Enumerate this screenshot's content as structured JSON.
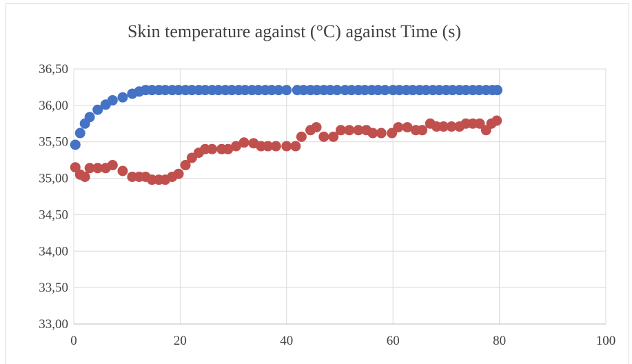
{
  "chart_data": {
    "type": "scatter",
    "title": "Skin temperature against (°C) against Time (s)",
    "xlabel": "",
    "ylabel": "",
    "xlim": [
      0,
      100
    ],
    "ylim": [
      33.0,
      36.5
    ],
    "x_ticks": [
      "0",
      "20",
      "40",
      "60",
      "80",
      "100"
    ],
    "y_ticks": [
      "33,00",
      "33,50",
      "34,00",
      "34,50",
      "35,00",
      "35,50",
      "36,00",
      "36,50"
    ],
    "grid": "horizontal",
    "legend": "none",
    "series": [
      {
        "color": "#4472c4",
        "x": [
          0.3,
          1.2,
          2.1,
          3.0,
          4.5,
          6.0,
          7.3,
          9.2,
          11.0,
          12.3,
          13.5,
          14.7,
          16.0,
          17.2,
          18.5,
          19.7,
          21.0,
          22.2,
          23.5,
          24.7,
          26.0,
          27.2,
          28.5,
          29.7,
          31.0,
          32.2,
          33.5,
          34.7,
          36.0,
          37.2,
          38.5,
          40.0,
          42.0,
          43.2,
          44.5,
          45.7,
          47.0,
          48.2,
          49.5,
          51.0,
          52.2,
          53.5,
          54.7,
          56.0,
          57.2,
          58.5,
          60.0,
          61.2,
          62.5,
          63.7,
          65.0,
          66.2,
          67.5,
          68.7,
          70.0,
          71.2,
          72.5,
          73.7,
          75.0,
          76.2,
          77.5,
          78.7,
          79.6
        ],
        "y": [
          35.46,
          35.62,
          35.75,
          35.84,
          35.94,
          36.01,
          36.07,
          36.11,
          36.16,
          36.19,
          36.21,
          36.21,
          36.21,
          36.21,
          36.21,
          36.21,
          36.21,
          36.21,
          36.21,
          36.21,
          36.21,
          36.21,
          36.21,
          36.21,
          36.21,
          36.21,
          36.21,
          36.21,
          36.21,
          36.21,
          36.21,
          36.21,
          36.21,
          36.21,
          36.21,
          36.21,
          36.21,
          36.21,
          36.21,
          36.21,
          36.21,
          36.21,
          36.21,
          36.21,
          36.21,
          36.21,
          36.21,
          36.21,
          36.21,
          36.21,
          36.21,
          36.21,
          36.21,
          36.21,
          36.21,
          36.21,
          36.21,
          36.21,
          36.21,
          36.21,
          36.21,
          36.21,
          36.21
        ]
      },
      {
        "color": "#c0504d",
        "x": [
          0.3,
          1.2,
          2.1,
          3.0,
          4.5,
          6.0,
          7.3,
          9.2,
          11.0,
          12.3,
          13.5,
          14.7,
          16.0,
          17.2,
          18.5,
          19.7,
          21.0,
          22.2,
          23.5,
          24.7,
          26.0,
          27.8,
          29.0,
          30.5,
          32.0,
          33.8,
          35.2,
          36.5,
          38.0,
          40.0,
          41.7,
          42.8,
          44.5,
          45.6,
          47.0,
          48.8,
          50.2,
          51.8,
          53.5,
          55.0,
          56.2,
          57.8,
          59.8,
          61.0,
          62.7,
          64.3,
          65.5,
          67.0,
          68.2,
          69.5,
          71.0,
          72.5,
          73.7,
          75.0,
          76.3,
          77.5,
          78.5,
          79.5
        ],
        "y": [
          35.15,
          35.05,
          35.02,
          35.14,
          35.14,
          35.14,
          35.18,
          35.1,
          35.02,
          35.02,
          35.02,
          34.98,
          34.98,
          34.98,
          35.02,
          35.06,
          35.18,
          35.28,
          35.35,
          35.4,
          35.4,
          35.4,
          35.4,
          35.44,
          35.49,
          35.48,
          35.44,
          35.44,
          35.44,
          35.44,
          35.44,
          35.57,
          35.66,
          35.7,
          35.57,
          35.57,
          35.66,
          35.66,
          35.66,
          35.66,
          35.62,
          35.62,
          35.62,
          35.7,
          35.7,
          35.66,
          35.66,
          35.75,
          35.71,
          35.71,
          35.71,
          35.71,
          35.75,
          35.75,
          35.75,
          35.66,
          35.75,
          35.79
        ]
      }
    ]
  }
}
